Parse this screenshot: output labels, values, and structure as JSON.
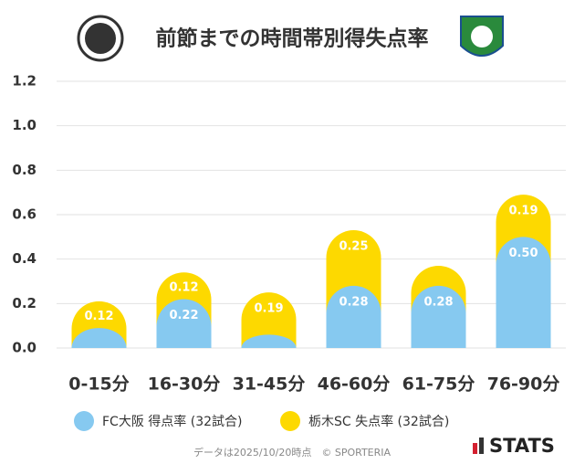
{
  "chart_data": {
    "type": "stacked_bar",
    "title": "前節までの時間帯別得失点率",
    "categories": [
      "0-15分",
      "16-30分",
      "31-45分",
      "46-60分",
      "61-75分",
      "76-90分"
    ],
    "series": [
      {
        "name": "FC大阪 得点率 (32試合)",
        "color": "#86c9f0",
        "values": [
          0.09,
          0.22,
          0.06,
          0.28,
          0.28,
          0.5
        ],
        "value_labels": [
          null,
          "0.22",
          null,
          "0.28",
          "0.28",
          "0.50"
        ]
      },
      {
        "name": "栃木SC 失点率 (32試合)",
        "color": "#fdd900",
        "values": [
          0.12,
          0.12,
          0.19,
          0.25,
          0.09,
          0.19
        ],
        "value_labels": [
          "0.12",
          "0.12",
          "0.19",
          "0.25",
          null,
          "0.19"
        ]
      }
    ],
    "ylim": [
      0,
      1.2
    ],
    "yticks": [
      {
        "value": 0,
        "label": "0.0"
      },
      0.2,
      0.4,
      0.6,
      0.8,
      {
        "value": 1,
        "label": "1.0"
      },
      1.2
    ],
    "grid": true,
    "footnote": "データは2025/10/20時点　© SPORTERIA",
    "brand": "STATS"
  }
}
